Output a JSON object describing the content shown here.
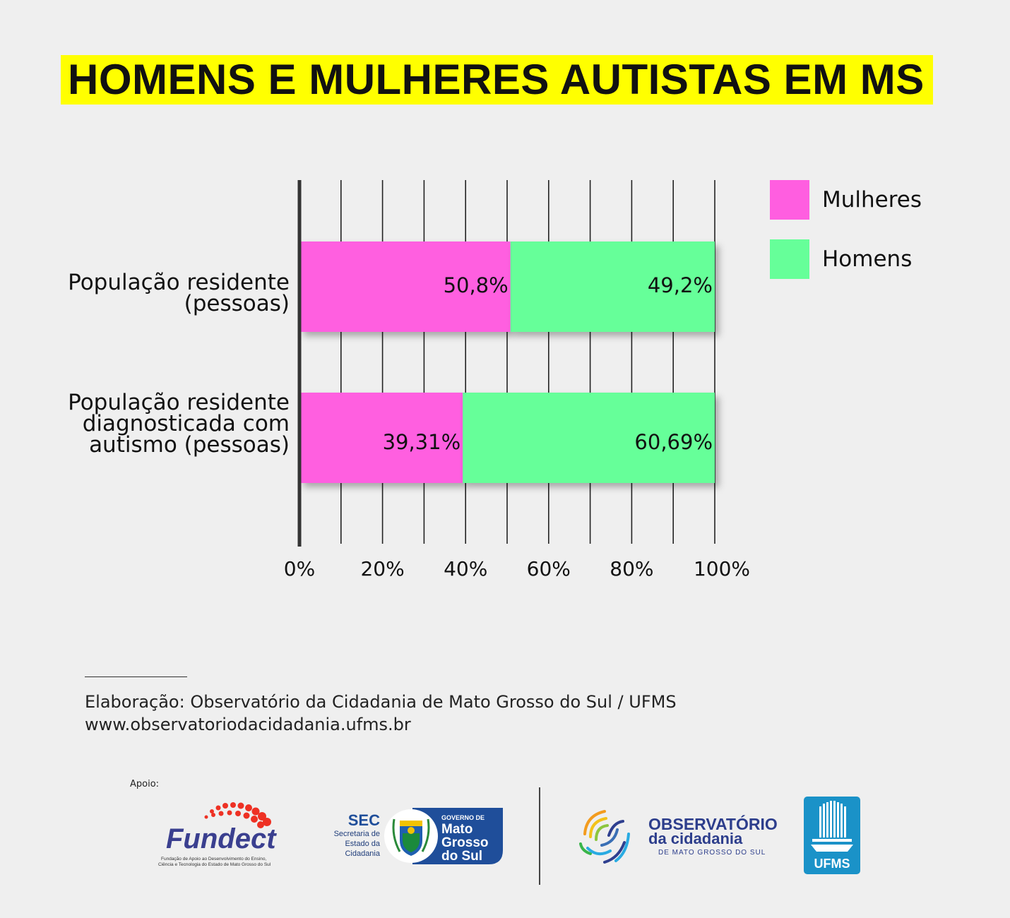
{
  "title": "HOMENS E MULHERES AUTISTAS EM MS",
  "chart_data": {
    "type": "bar",
    "orientation": "horizontal",
    "stacked": true,
    "categories": [
      "População residente (pessoas)",
      "População residente diagnosticada com autismo (pessoas)"
    ],
    "series": [
      {
        "name": "Mulheres",
        "values": [
          50.8,
          39.31
        ],
        "labels": [
          "50,8%",
          "39,31%"
        ],
        "color": "#ff5ee0"
      },
      {
        "name": "Homens",
        "values": [
          49.2,
          60.69
        ],
        "labels": [
          "49,2%",
          "60,69%"
        ],
        "color": "#66ff99"
      }
    ],
    "xlim": [
      0,
      100
    ],
    "xticks": [
      "0%",
      "20%",
      "40%",
      "60%",
      "80%",
      "100%"
    ],
    "grid": true,
    "legend_position": "top-right"
  },
  "category_lines": [
    [
      "População residente",
      "(pessoas)"
    ],
    [
      "População residente",
      "diagnosticada com",
      "autismo (pessoas)"
    ]
  ],
  "footer": {
    "credit_line1": "Elaboração: Observatório da Cidadania de Mato Grosso do Sul / UFMS",
    "credit_line2": "www.observatoriodacidadania.ufms.br",
    "apoio": "Apoio:"
  },
  "logos": {
    "fundect": {
      "name": "Fundect",
      "tagline1": "Fundação de Apoio ao Desenvolvimento do Ensino,",
      "tagline2": "Ciência e Tecnologia do Estado de Mato Grosso do Sul"
    },
    "sec": {
      "abbr": "SEC",
      "line1": "Secretaria de",
      "line2": "Estado da",
      "line3": "Cidadania",
      "gov_line1": "GOVERNO DE",
      "gov_line2": "Mato",
      "gov_line3": "Grosso",
      "gov_line4": "do Sul"
    },
    "observatorio": {
      "line1": "OBSERVATÓRIO",
      "line2": "da cidadania",
      "line3": "DE MATO GROSSO DO SUL"
    },
    "ufms": {
      "text": "UFMS"
    }
  }
}
